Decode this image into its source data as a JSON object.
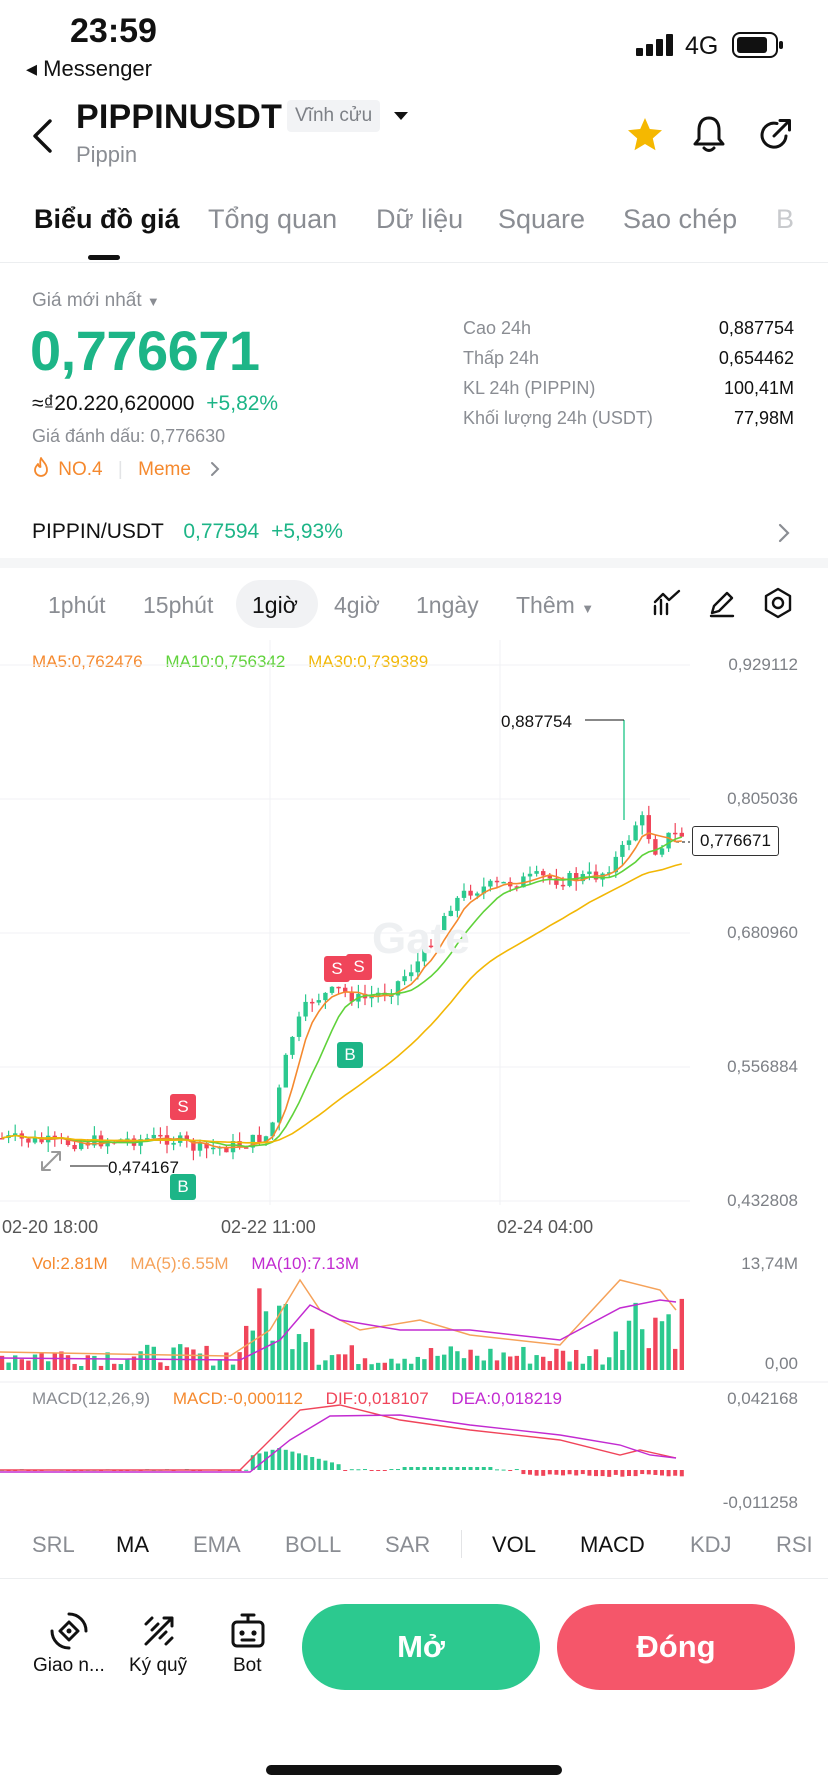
{
  "status_bar": {
    "time": "23:59",
    "back_app": "◂ Messenger",
    "network": "4G"
  },
  "header": {
    "symbol": "PIPPINUSDT",
    "contract_type": "Vĩnh cửu",
    "name": "Pippin",
    "icons": [
      "back-icon",
      "star-icon",
      "bell-icon",
      "share-icon"
    ],
    "star_color": "#f5b800"
  },
  "tabs": [
    {
      "label": "Biểu đồ giá",
      "active": true
    },
    {
      "label": "Tổng quan"
    },
    {
      "label": "Dữ liệu"
    },
    {
      "label": "Square"
    },
    {
      "label": "Sao chép"
    },
    {
      "label": "B"
    }
  ],
  "price": {
    "label": "Giá mới nhất",
    "last": "0,776671",
    "fiat": "≈₫20.220,620000",
    "change": "+5,82%",
    "mark": "Giá đánh dấu: 0,776630",
    "rank": "NO.4",
    "tag": "Meme"
  },
  "stats": [
    {
      "label": "Cao 24h",
      "value": "0,887754"
    },
    {
      "label": "Thấp 24h",
      "value": "0,654462"
    },
    {
      "label": "KL 24h (PIPPIN)",
      "value": "100,41M"
    },
    {
      "label": "Khối lượng 24h (USDT)",
      "value": "77,98M"
    }
  ],
  "spot": {
    "pair": "PIPPIN/USDT",
    "price": "0,77594",
    "change": "+5,93%"
  },
  "timeframes": [
    {
      "label": "1phút"
    },
    {
      "label": "15phút"
    },
    {
      "label": "1giờ",
      "active": true
    },
    {
      "label": "4giờ"
    },
    {
      "label": "1ngày"
    },
    {
      "label": "Thêm"
    }
  ],
  "chart": {
    "ma": {
      "ma5": "MA5:0,762476",
      "ma10": "MA10:0,756342",
      "ma30": "MA30:0,739389"
    },
    "y_ticks": [
      "0,929112",
      "0,805036",
      "0,680960",
      "0,556884",
      "0,432808"
    ],
    "x_ticks": [
      "02-20 18:00",
      "02-22 11:00",
      "02-24 04:00"
    ],
    "high_marker": "0,887754",
    "low_marker": "0,474167",
    "current_price_tag": "0,776671",
    "signals": [
      "S",
      "S",
      "S",
      "B",
      "B"
    ],
    "watermark": "Gate",
    "vol": {
      "label": "Vol:2.81M",
      "ma5": "MA(5):6.55M",
      "ma10": "MA(10):7.13M",
      "max": "13,74M",
      "min": "0,00"
    },
    "macd": {
      "label": "MACD(12,26,9)",
      "macd": "MACD:-0,000112",
      "dif": "DIF:0,018107",
      "dea": "DEA:0,018219",
      "max": "0,042168",
      "min": "-0,011258"
    }
  },
  "indicators": [
    {
      "label": "SRL"
    },
    {
      "label": "MA",
      "on": true
    },
    {
      "label": "EMA"
    },
    {
      "label": "BOLL"
    },
    {
      "label": "SAR"
    },
    {
      "label": "VOL",
      "on": true
    },
    {
      "label": "MACD",
      "on": true
    },
    {
      "label": "KDJ"
    },
    {
      "label": "RSI"
    }
  ],
  "bottom_bar": {
    "items": [
      {
        "label": "Giao n..."
      },
      {
        "label": "Ký quỹ"
      },
      {
        "label": "Bot"
      }
    ],
    "open": "Mở",
    "close": "Đóng",
    "open_color": "#2cc98f",
    "close_color": "#f5566a"
  }
}
